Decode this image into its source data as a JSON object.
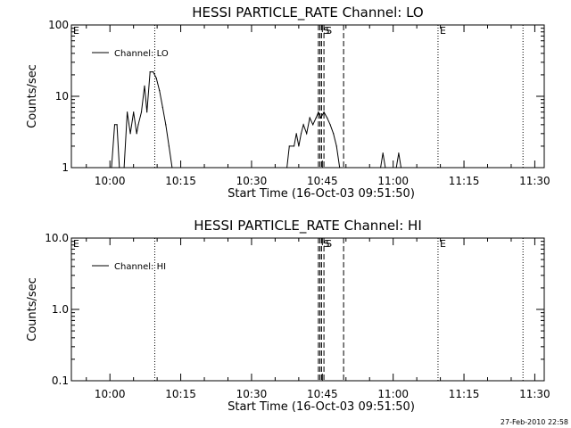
{
  "timestamp": "27-Feb-2010 22:58",
  "chart_data": [
    {
      "type": "line",
      "title": "HESSI PARTICLE_RATE Channel: LO",
      "xlabel": "Start Time (16-Oct-03 09:51:50)",
      "ylabel": "Counts/sec",
      "yscale": "log",
      "xlim": [
        "09:51:50",
        "11:32:00"
      ],
      "ylim": [
        1,
        100
      ],
      "x_ticks": [
        "10:00",
        "10:15",
        "10:30",
        "10:45",
        "11:00",
        "11:15",
        "11:30"
      ],
      "y_ticks": [
        "1",
        "10",
        "100"
      ],
      "legend": "top-left",
      "series": [
        {
          "name": "Channel: LO",
          "points": [
            [
              "10:00:20",
              1
            ],
            [
              "10:01:00",
              4
            ],
            [
              "10:01:30",
              4
            ],
            [
              "10:02:00",
              1
            ],
            [
              "10:03:00",
              1
            ],
            [
              "10:03:40",
              6
            ],
            [
              "10:04:20",
              3
            ],
            [
              "10:05:00",
              6
            ],
            [
              "10:05:40",
              3
            ],
            [
              "10:06:00",
              4
            ],
            [
              "10:06:40",
              6
            ],
            [
              "10:07:20",
              14
            ],
            [
              "10:07:50",
              6
            ],
            [
              "10:08:30",
              22
            ],
            [
              "10:09:10",
              22
            ],
            [
              "10:09:50",
              18
            ],
            [
              "10:10:30",
              12
            ],
            [
              "10:11:10",
              7
            ],
            [
              "10:11:50",
              4
            ],
            [
              "10:12:30",
              2
            ],
            [
              "10:13:10",
              1
            ],
            [
              "10:37:30",
              1
            ],
            [
              "10:38:00",
              2
            ],
            [
              "10:39:00",
              2
            ],
            [
              "10:39:30",
              3
            ],
            [
              "10:40:00",
              2
            ],
            [
              "10:40:30",
              3
            ],
            [
              "10:41:00",
              4
            ],
            [
              "10:41:40",
              3
            ],
            [
              "10:42:20",
              5
            ],
            [
              "10:43:00",
              4
            ],
            [
              "10:43:40",
              5
            ],
            [
              "10:44:10",
              6
            ],
            [
              "10:44:40",
              5
            ],
            [
              "10:45:20",
              6
            ],
            [
              "10:46:00",
              5
            ],
            [
              "10:46:40",
              4
            ],
            [
              "10:47:20",
              3
            ],
            [
              "10:48:00",
              2
            ],
            [
              "10:48:40",
              1
            ],
            [
              "10:57:20",
              1
            ],
            [
              "10:57:50",
              1.6
            ],
            [
              "10:58:20",
              1
            ],
            [
              "11:00:40",
              1
            ],
            [
              "11:01:10",
              1.6
            ],
            [
              "11:01:40",
              1
            ]
          ]
        }
      ],
      "markers": [
        {
          "label": "E",
          "time": "09:51:50",
          "style": "dotted"
        },
        {
          "label": "",
          "time": "10:09:30",
          "style": "dotted"
        },
        {
          "label": "",
          "time": "10:44:10",
          "style": "dashed"
        },
        {
          "label": "",
          "time": "10:44:30",
          "style": "dashed"
        },
        {
          "label": "S",
          "time": "10:44:50",
          "style": "dashed"
        },
        {
          "label": "S",
          "time": "10:45:20",
          "style": "dashed"
        },
        {
          "label": "",
          "time": "10:49:30",
          "style": "dashed"
        },
        {
          "label": "E",
          "time": "11:09:30",
          "style": "dotted"
        },
        {
          "label": "",
          "time": "11:27:30",
          "style": "dotted"
        }
      ]
    },
    {
      "type": "line",
      "title": "HESSI PARTICLE_RATE Channel: HI",
      "xlabel": "Start Time (16-Oct-03 09:51:50)",
      "ylabel": "Counts/sec",
      "yscale": "log",
      "xlim": [
        "09:51:50",
        "11:32:00"
      ],
      "ylim": [
        0.1,
        10
      ],
      "x_ticks": [
        "10:00",
        "10:15",
        "10:30",
        "10:45",
        "11:00",
        "11:15",
        "11:30"
      ],
      "y_ticks": [
        "0.1",
        "1.0",
        "10.0"
      ],
      "legend": "top-left",
      "series": [
        {
          "name": "Channel: HI",
          "points": []
        }
      ],
      "markers": [
        {
          "label": "E",
          "time": "09:51:50",
          "style": "dotted"
        },
        {
          "label": "",
          "time": "10:09:30",
          "style": "dotted"
        },
        {
          "label": "",
          "time": "10:44:10",
          "style": "dashed"
        },
        {
          "label": "",
          "time": "10:44:30",
          "style": "dashed"
        },
        {
          "label": "S",
          "time": "10:44:50",
          "style": "dashed"
        },
        {
          "label": "S",
          "time": "10:45:20",
          "style": "dashed"
        },
        {
          "label": "",
          "time": "10:49:30",
          "style": "dashed"
        },
        {
          "label": "E",
          "time": "11:09:30",
          "style": "dotted"
        },
        {
          "label": "",
          "time": "11:27:30",
          "style": "dotted"
        }
      ]
    }
  ]
}
